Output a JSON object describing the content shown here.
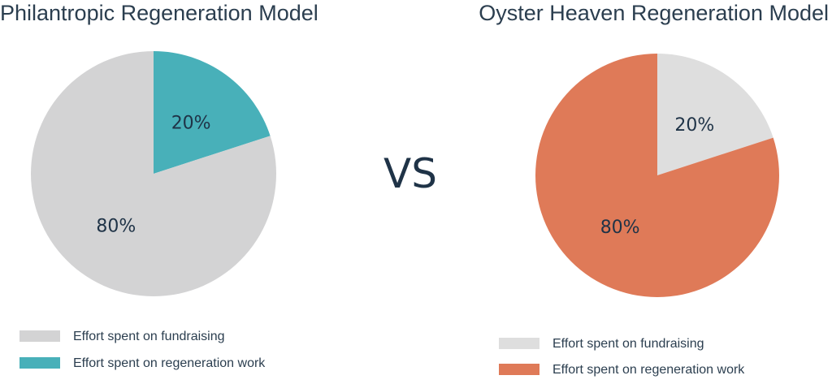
{
  "vs_label": "VS",
  "chart_data": [
    {
      "type": "pie",
      "title": "Philantropic Regeneration Model",
      "slices": [
        {
          "label": "Effort spent on regeneration work",
          "value": 20,
          "display": "20%",
          "color": "#48b0b9"
        },
        {
          "label": "Effort spent on fundraising",
          "value": 80,
          "display": "80%",
          "color": "#d3d3d4"
        }
      ],
      "legend": [
        {
          "label": "Effort spent on fundraising",
          "color": "#d3d3d4"
        },
        {
          "label": "Effort spent on regeneration work",
          "color": "#48b0b9"
        }
      ],
      "legend_placement": "bottom-left"
    },
    {
      "type": "pie",
      "title": "Oyster Heaven Regeneration Model",
      "slices": [
        {
          "label": "Effort spent on fundraising",
          "value": 20,
          "display": "20%",
          "color": "#dedede"
        },
        {
          "label": "Effort spent on regeneration work",
          "value": 80,
          "display": "80%",
          "color": "#df7a58"
        }
      ],
      "legend": [
        {
          "label": "Effort spent on fundraising",
          "color": "#dedede"
        },
        {
          "label": "Effort spent on regeneration work",
          "color": "#df7a58"
        }
      ],
      "legend_placement": "bottom-left"
    }
  ]
}
